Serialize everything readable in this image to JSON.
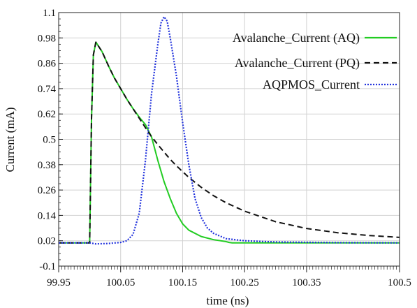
{
  "chart_data": {
    "type": "line",
    "title": "",
    "xlabel": "time (ns)",
    "ylabel": "Current (mA)",
    "xlim": [
      99.95,
      100.5
    ],
    "ylim": [
      -0.1,
      1.1
    ],
    "x_ticks": [
      99.95,
      100.05,
      100.15,
      100.25,
      100.35,
      100.5
    ],
    "x_tick_labels": [
      "99.95",
      "100.05",
      "100.15",
      "100.25",
      "100.35",
      "100.5"
    ],
    "y_ticks": [
      -0.1,
      0.02,
      0.14,
      0.26,
      0.38,
      0.5,
      0.62,
      0.74,
      0.86,
      0.98,
      1.1
    ],
    "y_tick_labels": [
      "-0.1",
      "0.02",
      "0.14",
      "0.26",
      "0.38",
      "0.5",
      "0.62",
      "0.74",
      "0.86",
      "0.98",
      "1.1"
    ],
    "grid": true,
    "legend_position": "top-right",
    "series": [
      {
        "name": "Avalanche_Current (AQ)",
        "color": "#22cc22",
        "dash": "solid",
        "points": [
          [
            99.95,
            0.01
          ],
          [
            100.0,
            0.01
          ],
          [
            100.003,
            0.6
          ],
          [
            100.006,
            0.9
          ],
          [
            100.01,
            0.96
          ],
          [
            100.02,
            0.915
          ],
          [
            100.03,
            0.85
          ],
          [
            100.04,
            0.79
          ],
          [
            100.05,
            0.74
          ],
          [
            100.06,
            0.69
          ],
          [
            100.07,
            0.645
          ],
          [
            100.08,
            0.605
          ],
          [
            100.09,
            0.57
          ],
          [
            100.1,
            0.51
          ],
          [
            100.11,
            0.4
          ],
          [
            100.12,
            0.3
          ],
          [
            100.13,
            0.22
          ],
          [
            100.14,
            0.15
          ],
          [
            100.15,
            0.1
          ],
          [
            100.16,
            0.07
          ],
          [
            100.18,
            0.04
          ],
          [
            100.2,
            0.025
          ],
          [
            100.22,
            0.016
          ],
          [
            100.225,
            0.012
          ],
          [
            100.23,
            0.01
          ],
          [
            100.3,
            0.01
          ],
          [
            100.4,
            0.01
          ],
          [
            100.5,
            0.01
          ]
        ]
      },
      {
        "name": "Avalanche_Current (PQ)",
        "color": "#111111",
        "dash": "dashed",
        "points": [
          [
            99.95,
            0.01
          ],
          [
            100.0,
            0.01
          ],
          [
            100.003,
            0.6
          ],
          [
            100.006,
            0.9
          ],
          [
            100.01,
            0.96
          ],
          [
            100.02,
            0.915
          ],
          [
            100.03,
            0.85
          ],
          [
            100.04,
            0.79
          ],
          [
            100.05,
            0.74
          ],
          [
            100.06,
            0.69
          ],
          [
            100.07,
            0.645
          ],
          [
            100.08,
            0.6
          ],
          [
            100.09,
            0.555
          ],
          [
            100.1,
            0.512
          ],
          [
            100.11,
            0.475
          ],
          [
            100.12,
            0.44
          ],
          [
            100.13,
            0.405
          ],
          [
            100.14,
            0.375
          ],
          [
            100.15,
            0.347
          ],
          [
            100.16,
            0.32
          ],
          [
            100.18,
            0.273
          ],
          [
            100.2,
            0.233
          ],
          [
            100.22,
            0.2
          ],
          [
            100.25,
            0.16
          ],
          [
            100.3,
            0.11
          ],
          [
            100.35,
            0.078
          ],
          [
            100.4,
            0.058
          ],
          [
            100.45,
            0.045
          ],
          [
            100.5,
            0.036
          ]
        ]
      },
      {
        "name": "AQPMOS_Current",
        "color": "#2233dd",
        "dash": "dotted",
        "points": [
          [
            99.95,
            0.01
          ],
          [
            100.0,
            0.01
          ],
          [
            100.01,
            0.005
          ],
          [
            100.03,
            0.007
          ],
          [
            100.05,
            0.012
          ],
          [
            100.06,
            0.02
          ],
          [
            100.07,
            0.05
          ],
          [
            100.08,
            0.15
          ],
          [
            100.09,
            0.4
          ],
          [
            100.1,
            0.72
          ],
          [
            100.11,
            0.95
          ],
          [
            100.115,
            1.05
          ],
          [
            100.12,
            1.08
          ],
          [
            100.125,
            1.06
          ],
          [
            100.13,
            0.98
          ],
          [
            100.14,
            0.8
          ],
          [
            100.15,
            0.58
          ],
          [
            100.16,
            0.38
          ],
          [
            100.17,
            0.22
          ],
          [
            100.18,
            0.13
          ],
          [
            100.19,
            0.08
          ],
          [
            100.2,
            0.055
          ],
          [
            100.22,
            0.03
          ],
          [
            100.25,
            0.02
          ],
          [
            100.3,
            0.014
          ],
          [
            100.4,
            0.011
          ],
          [
            100.5,
            0.01
          ]
        ]
      }
    ]
  }
}
